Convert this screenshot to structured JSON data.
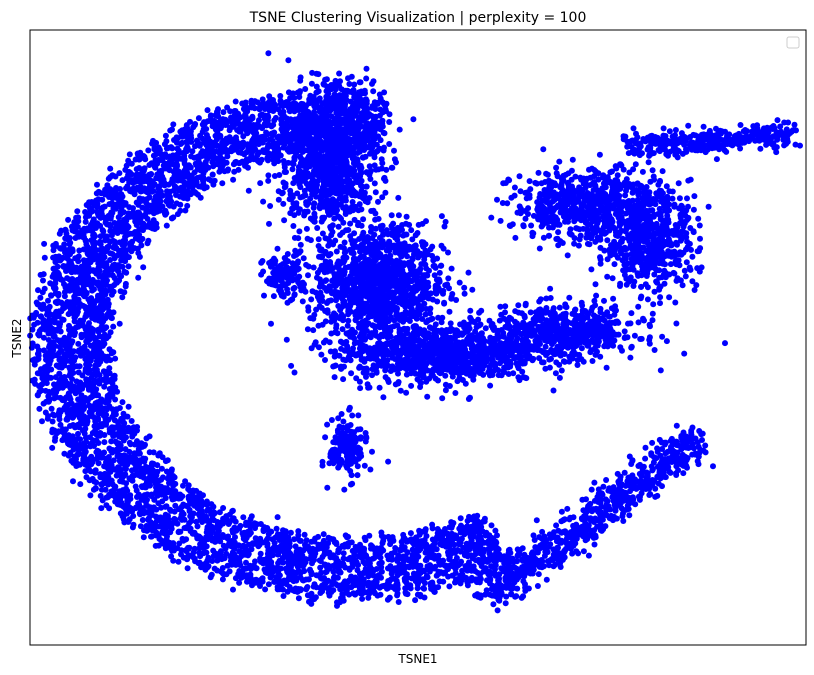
{
  "chart_data": {
    "type": "scatter",
    "title": "TSNE Clustering Visualization | perplexity = 100",
    "xlabel": "TSNE1",
    "ylabel": "TSNE2",
    "xlim": [
      -10,
      10
    ],
    "ylim": [
      -10,
      10
    ],
    "show_ticks": false,
    "grid": false,
    "legend": {
      "placement": "top-right",
      "entries": []
    },
    "marker_color": "#0000ff",
    "series": [
      {
        "regions": [
          {
            "kind": "arc",
            "center": [
              -1.6,
              -0.2
            ],
            "radius": [
              6.4,
              8.3
            ],
            "angle_deg": [
              85,
              300
            ],
            "weight": 3.2
          },
          {
            "kind": "blob",
            "center": [
              -2.3,
              5.8
            ],
            "spread": [
              1.1,
              1.8
            ],
            "weight": 0.7
          },
          {
            "kind": "blob",
            "center": [
              -1.0,
              1.8
            ],
            "spread": [
              1.4,
              1.5
            ],
            "weight": 0.8
          },
          {
            "kind": "blob",
            "center": [
              0.5,
              -0.5
            ],
            "spread": [
              2.2,
              0.8
            ],
            "weight": 0.7
          },
          {
            "kind": "blob",
            "center": [
              3.8,
              0.2
            ],
            "spread": [
              1.6,
              0.7
            ],
            "weight": 0.4
          },
          {
            "kind": "blob",
            "center": [
              4.5,
              4.3
            ],
            "spread": [
              1.7,
              1.0
            ],
            "weight": 0.5
          },
          {
            "kind": "blob",
            "center": [
              6.0,
              3.0
            ],
            "spread": [
              1.0,
              1.2
            ],
            "weight": 0.35
          },
          {
            "kind": "band",
            "from": [
              5.5,
              6.2
            ],
            "to": [
              9.6,
              6.6
            ],
            "width": 0.35,
            "weight": 0.25
          },
          {
            "kind": "band",
            "from": [
              1.8,
              -8.4
            ],
            "to": [
              7.2,
              -3.3
            ],
            "width": 0.5,
            "weight": 0.5
          },
          {
            "kind": "blob",
            "center": [
              -1.8,
              -3.6
            ],
            "spread": [
              0.4,
              0.8
            ],
            "weight": 0.12
          },
          {
            "kind": "blob",
            "center": [
              -3.5,
              2.0
            ],
            "spread": [
              0.4,
              0.6
            ],
            "weight": 0.08
          }
        ]
      }
    ]
  }
}
